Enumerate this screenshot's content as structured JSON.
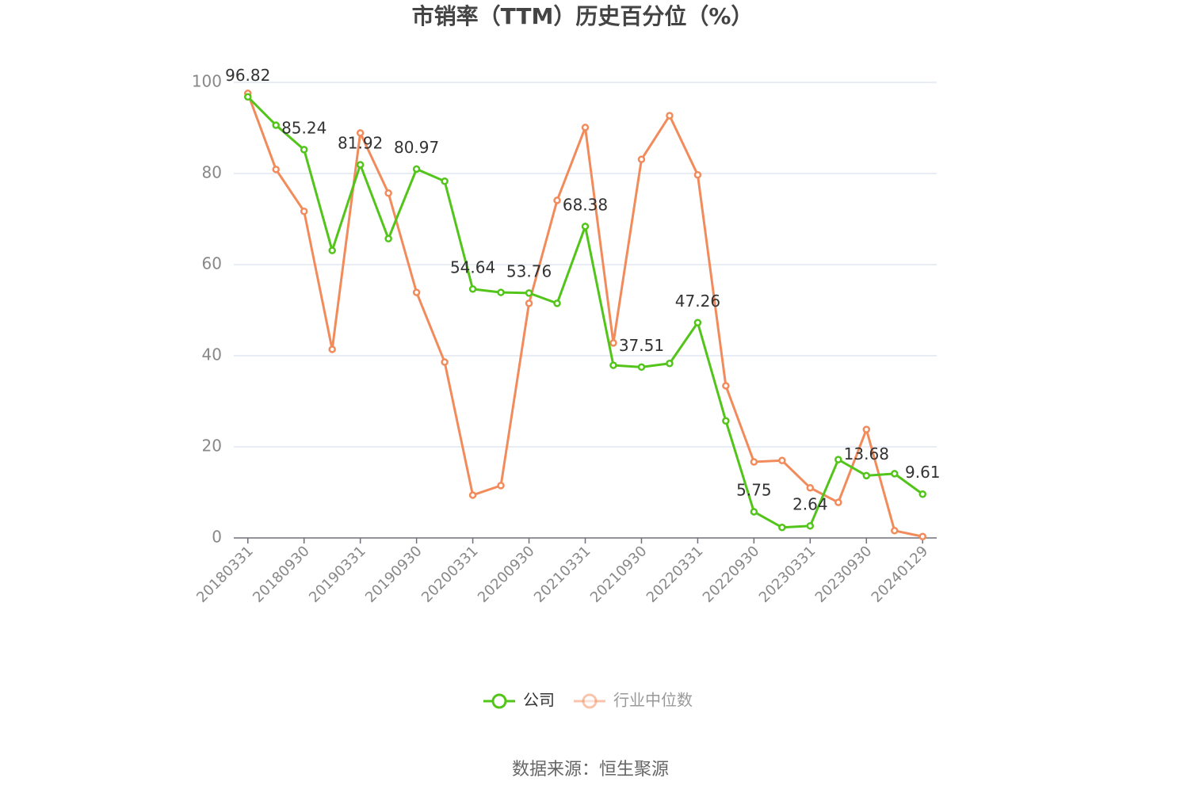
{
  "chart_data": {
    "type": "line",
    "title": "市销率（TTM）历史百分位（%）",
    "source": "数据来源：恒生聚源",
    "categories": [
      "20180331",
      null,
      "20180930",
      null,
      "20190331",
      null,
      "20190930",
      null,
      "20200331",
      null,
      "20200930",
      null,
      "20210331",
      null,
      "20210930",
      null,
      "20220331",
      null,
      "20220930",
      null,
      "20230331",
      null,
      "20230930",
      null,
      "20240129"
    ],
    "series": [
      {
        "name": "公司",
        "color": "#52c41a",
        "values": [
          96.82,
          90.6,
          85.24,
          63.1,
          81.92,
          65.7,
          80.97,
          78.3,
          54.64,
          53.9,
          53.76,
          51.5,
          68.38,
          37.9,
          37.51,
          38.3,
          47.26,
          25.7,
          5.75,
          2.3,
          2.64,
          17.2,
          13.68,
          14.1,
          9.61
        ],
        "value_labels": [
          "96.82",
          null,
          "85.24",
          null,
          "81.92",
          null,
          "80.97",
          null,
          "54.64",
          null,
          "53.76",
          null,
          "68.38",
          null,
          "37.51",
          null,
          "47.26",
          null,
          "5.75",
          null,
          "2.64",
          null,
          "13.68",
          null,
          "9.61"
        ]
      },
      {
        "name": "行业中位数",
        "color": "#f28b5b",
        "values": [
          97.6,
          80.9,
          71.7,
          41.4,
          88.9,
          75.7,
          53.9,
          38.6,
          9.4,
          11.5,
          51.5,
          74.1,
          90.1,
          42.8,
          83.1,
          92.7,
          79.7,
          33.4,
          16.7,
          17.0,
          11.0,
          7.8,
          23.8,
          1.6,
          0.3
        ]
      }
    ],
    "ylim": [
      0,
      100
    ],
    "yticks": [
      0,
      20,
      40,
      60,
      80,
      100
    ],
    "grid": true
  }
}
